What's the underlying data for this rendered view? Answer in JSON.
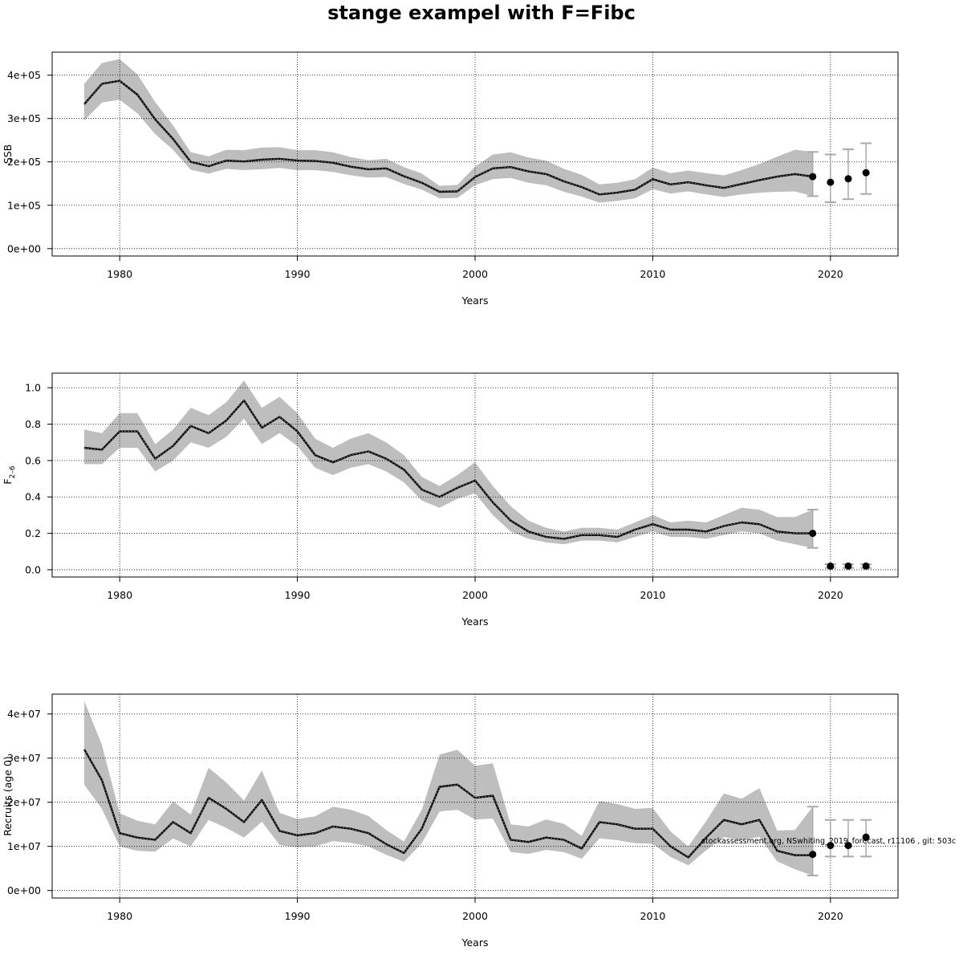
{
  "title": "stange exampel with F=Fibc",
  "watermark": "stockassessment.org, NSwhiting_2019_forecast, r11106 , git: 503c",
  "chart_data": [
    {
      "type": "line",
      "ylabel": "SSB",
      "xlabel": "Years",
      "xlim": [
        1976.2,
        2023.8
      ],
      "ylim": [
        -17000,
        453000
      ],
      "xticks": [
        1980,
        1990,
        2000,
        2010,
        2020
      ],
      "yticks": [
        0,
        100000,
        200000,
        300000,
        400000
      ],
      "ytick_labels": [
        "0e+00",
        "1e+05",
        "2e+05",
        "3e+05",
        "4e+05"
      ],
      "xtick_labels": [
        "1980",
        "1990",
        "2000",
        "2010",
        "2020"
      ],
      "grid": true,
      "years": [
        1978,
        1979,
        1980,
        1981,
        1982,
        1983,
        1984,
        1985,
        1986,
        1987,
        1988,
        1989,
        1990,
        1991,
        1992,
        1993,
        1994,
        1995,
        1996,
        1997,
        1998,
        1999,
        2000,
        2001,
        2002,
        2003,
        2004,
        2005,
        2006,
        2007,
        2008,
        2009,
        2010,
        2011,
        2012,
        2013,
        2014,
        2015,
        2016,
        2017,
        2018,
        2019
      ],
      "estimate": [
        333000,
        380000,
        387000,
        355000,
        298000,
        253000,
        200000,
        190000,
        203000,
        201000,
        205000,
        207000,
        203000,
        202000,
        198000,
        189000,
        183000,
        185000,
        167000,
        152000,
        131000,
        132000,
        165000,
        185000,
        188000,
        178000,
        172000,
        155000,
        142000,
        125000,
        129000,
        136000,
        160000,
        148000,
        153000,
        146000,
        140000,
        149000,
        158000,
        166000,
        172000,
        166000
      ],
      "lower": [
        295000,
        337000,
        343000,
        312000,
        264000,
        228000,
        182000,
        173000,
        184000,
        181000,
        183000,
        186000,
        181000,
        181000,
        177000,
        169000,
        164000,
        165000,
        149000,
        136000,
        116000,
        117000,
        146000,
        160000,
        163000,
        152000,
        146000,
        131000,
        120000,
        106000,
        110000,
        116000,
        137000,
        127000,
        132000,
        125000,
        119000,
        125000,
        129000,
        131000,
        132000,
        121000
      ],
      "upper": [
        380000,
        428000,
        437000,
        402000,
        338000,
        284000,
        222000,
        213000,
        228000,
        227000,
        233000,
        234000,
        227000,
        227000,
        222000,
        211000,
        204000,
        207000,
        188000,
        173000,
        145000,
        147000,
        189000,
        217000,
        222000,
        210000,
        203000,
        184000,
        170000,
        148000,
        152000,
        160000,
        187000,
        174000,
        180000,
        174000,
        169000,
        181000,
        195000,
        212000,
        228000,
        223000
      ],
      "forecast": {
        "years": [
          2019,
          2020,
          2021,
          2022
        ],
        "value": [
          166000,
          153000,
          161000,
          175000
        ],
        "lower": [
          121000,
          107000,
          114000,
          126000
        ],
        "upper": [
          223000,
          217000,
          229000,
          243000
        ]
      }
    },
    {
      "type": "line",
      "ylabel": "F2–6",
      "ylabel_main": "F",
      "ylabel_sub": "2–6",
      "xlabel": "Years",
      "xlim": [
        1976.2,
        2023.8
      ],
      "ylim": [
        -0.04,
        1.08
      ],
      "xticks": [
        1980,
        1990,
        2000,
        2010,
        2020
      ],
      "yticks": [
        0.0,
        0.2,
        0.4,
        0.6,
        0.8,
        1.0
      ],
      "ytick_labels": [
        "0.0",
        "0.2",
        "0.4",
        "0.6",
        "0.8",
        "1.0"
      ],
      "xtick_labels": [
        "1980",
        "1990",
        "2000",
        "2010",
        "2020"
      ],
      "grid": true,
      "years": [
        1978,
        1979,
        1980,
        1981,
        1982,
        1983,
        1984,
        1985,
        1986,
        1987,
        1988,
        1989,
        1990,
        1991,
        1992,
        1993,
        1994,
        1995,
        1996,
        1997,
        1998,
        1999,
        2000,
        2001,
        2002,
        2003,
        2004,
        2005,
        2006,
        2007,
        2008,
        2009,
        2010,
        2011,
        2012,
        2013,
        2014,
        2015,
        2016,
        2017,
        2018,
        2019
      ],
      "estimate": [
        0.67,
        0.66,
        0.76,
        0.76,
        0.61,
        0.68,
        0.79,
        0.75,
        0.82,
        0.93,
        0.78,
        0.84,
        0.76,
        0.63,
        0.59,
        0.63,
        0.65,
        0.61,
        0.55,
        0.44,
        0.4,
        0.45,
        0.49,
        0.37,
        0.27,
        0.21,
        0.18,
        0.17,
        0.19,
        0.19,
        0.18,
        0.22,
        0.25,
        0.22,
        0.22,
        0.21,
        0.24,
        0.26,
        0.25,
        0.21,
        0.2,
        0.2
      ],
      "lower": [
        0.58,
        0.58,
        0.67,
        0.67,
        0.54,
        0.6,
        0.7,
        0.67,
        0.73,
        0.83,
        0.69,
        0.75,
        0.68,
        0.56,
        0.52,
        0.56,
        0.58,
        0.54,
        0.48,
        0.38,
        0.34,
        0.39,
        0.42,
        0.3,
        0.21,
        0.17,
        0.15,
        0.14,
        0.16,
        0.16,
        0.15,
        0.18,
        0.21,
        0.18,
        0.18,
        0.17,
        0.19,
        0.21,
        0.2,
        0.16,
        0.14,
        0.12
      ],
      "upper": [
        0.77,
        0.75,
        0.86,
        0.86,
        0.69,
        0.77,
        0.89,
        0.85,
        0.92,
        1.04,
        0.89,
        0.95,
        0.86,
        0.72,
        0.67,
        0.72,
        0.75,
        0.7,
        0.63,
        0.51,
        0.46,
        0.52,
        0.59,
        0.46,
        0.35,
        0.27,
        0.23,
        0.21,
        0.23,
        0.23,
        0.22,
        0.26,
        0.3,
        0.26,
        0.27,
        0.26,
        0.3,
        0.34,
        0.33,
        0.29,
        0.29,
        0.33
      ],
      "forecast": {
        "years": [
          2019,
          2020,
          2021,
          2022
        ],
        "value": [
          0.2,
          0.02,
          0.02,
          0.02
        ],
        "lower": [
          0.12,
          0.01,
          0.01,
          0.01
        ],
        "upper": [
          0.33,
          0.03,
          0.03,
          0.03
        ]
      }
    },
    {
      "type": "line",
      "ylabel": "Recruits (age 0)",
      "xlabel": "Years",
      "xlim": [
        1976.2,
        2023.8
      ],
      "ylim": [
        -1700000,
        44500000
      ],
      "xticks": [
        1980,
        1990,
        2000,
        2010,
        2020
      ],
      "yticks": [
        0,
        10000000,
        20000000,
        30000000,
        40000000
      ],
      "ytick_labels": [
        "0e+00",
        "1e+07",
        "2e+07",
        "3e+07",
        "4e+07"
      ],
      "xtick_labels": [
        "1980",
        "1990",
        "2000",
        "2010",
        "2020"
      ],
      "grid": true,
      "years": [
        1978,
        1979,
        1980,
        1981,
        1982,
        1983,
        1984,
        1985,
        1986,
        1987,
        1988,
        1989,
        1990,
        1991,
        1992,
        1993,
        1994,
        1995,
        1996,
        1997,
        1998,
        1999,
        2000,
        2001,
        2002,
        2003,
        2004,
        2005,
        2006,
        2007,
        2008,
        2009,
        2010,
        2011,
        2012,
        2013,
        2014,
        2015,
        2016,
        2017,
        2018,
        2019
      ],
      "estimate": [
        32000000,
        25000000,
        13000000,
        12000000,
        11500000,
        15500000,
        13000000,
        21000000,
        18500000,
        15500000,
        20500000,
        13500000,
        12500000,
        13000000,
        14500000,
        14000000,
        13000000,
        10500000,
        8500000,
        14000000,
        23500000,
        24000000,
        21000000,
        21500000,
        11500000,
        11000000,
        12000000,
        11500000,
        9500000,
        15500000,
        15000000,
        14000000,
        14000000,
        10000000,
        7500000,
        12000000,
        16000000,
        15000000,
        16000000,
        9000000,
        8000000,
        8000000
      ],
      "lower": [
        24000000,
        18500000,
        10000000,
        9000000,
        8800000,
        11800000,
        10000000,
        16000000,
        14200000,
        12000000,
        15600000,
        10300000,
        9800000,
        10000000,
        11200000,
        10800000,
        10000000,
        8100000,
        6500000,
        10700000,
        17900000,
        18300000,
        16100000,
        16300000,
        8700000,
        8300000,
        9200000,
        8700000,
        7200000,
        11800000,
        11400000,
        10700000,
        10600000,
        7600000,
        5700000,
        9100000,
        12100000,
        11400000,
        12200000,
        6600000,
        4800000,
        3400000
      ],
      "upper": [
        43000000,
        33000000,
        17500000,
        15800000,
        15000000,
        20200000,
        17200000,
        27800000,
        24500000,
        20400000,
        27200000,
        17600000,
        16200000,
        16800000,
        19000000,
        18300000,
        16900000,
        13700000,
        11100000,
        18300000,
        30800000,
        31900000,
        28300000,
        28800000,
        15000000,
        14500000,
        16100000,
        15100000,
        12400000,
        20300000,
        19600000,
        18500000,
        18700000,
        13400000,
        10000000,
        15700000,
        22000000,
        20800000,
        23200000,
        13600000,
        13700000,
        19000000
      ],
      "forecast": {
        "years": [
          2019,
          2020,
          2021,
          2022
        ],
        "value": [
          8200000,
          10200000,
          10200000,
          12100000
        ],
        "lower": [
          3400000,
          7700000,
          7700000,
          7700000
        ],
        "upper": [
          19000000,
          16000000,
          16000000,
          16000000
        ]
      }
    }
  ],
  "colors": {
    "band": "#bebebe",
    "line": "#000000",
    "grid": "#000000",
    "errorbar": "#a9a9a9",
    "point": "#000000"
  }
}
